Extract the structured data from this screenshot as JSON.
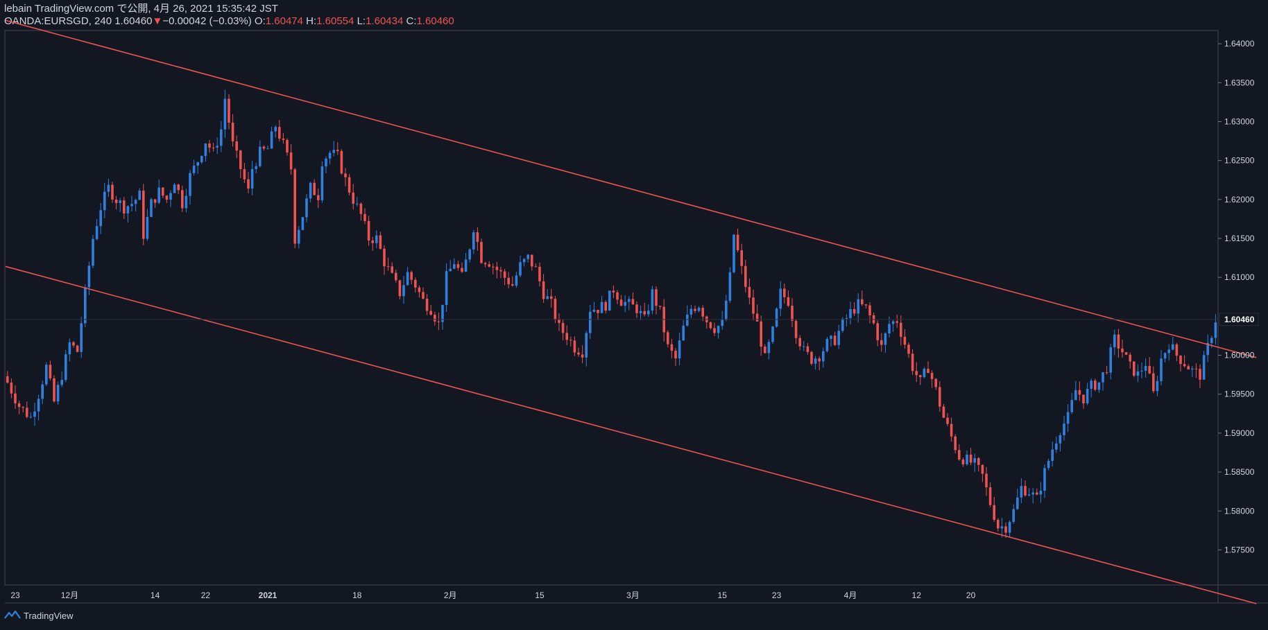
{
  "header": {
    "publish_line": "lebain TradingView.com で公開, 4月 26, 2021 15:35:42 JST",
    "symbol": "OANDA:EURSGD, 240",
    "last_price": "1.60460",
    "change_arrow": "▼",
    "change": "−0.00042 (−0.03%)",
    "o_label": "O:",
    "o_value": "1.60474",
    "h_label": "H:",
    "h_value": "1.60554",
    "l_label": "L:",
    "l_value": "1.60434",
    "c_label": "C:",
    "c_value": "1.60460"
  },
  "footer": {
    "brand": "TradingView",
    "logo_icon": "tradingview-logo-icon"
  },
  "colors": {
    "background": "#131722",
    "up": "#2f81e0",
    "down": "#ef5350",
    "trendline": "#ef5350",
    "axis_text": "#d1d4dc",
    "border": "#434651",
    "price_label_bg": "#131722"
  },
  "chart_data": {
    "type": "candlestick",
    "title": "",
    "xlabel": "",
    "ylabel": "",
    "ylim": [
      1.5705,
      1.6417
    ],
    "y_ticks": [
      "1.57500",
      "1.58000",
      "1.58500",
      "1.59000",
      "1.59500",
      "1.60000",
      "1.61000",
      "1.61500",
      "1.62000",
      "1.62500",
      "1.63000",
      "1.63500",
      "1.64000"
    ],
    "x_ticks": [
      "23",
      "12月",
      "14",
      "22",
      "2021",
      "18",
      "2月",
      "15",
      "3月",
      "15",
      "23",
      "4月",
      "12",
      "20"
    ],
    "current_price": "1.60460",
    "grid": false,
    "close_path": [
      [
        0,
        1.5965
      ],
      [
        3,
        1.5935
      ],
      [
        6,
        1.592
      ],
      [
        8,
        1.595
      ],
      [
        10,
        1.5985
      ],
      [
        12,
        1.594
      ],
      [
        14,
        1.5975
      ],
      [
        16,
        1.6015
      ],
      [
        18,
        1.6005
      ],
      [
        20,
        1.608
      ],
      [
        22,
        1.615
      ],
      [
        24,
        1.619
      ],
      [
        26,
        1.6215
      ],
      [
        28,
        1.62
      ],
      [
        30,
        1.619
      ],
      [
        32,
        1.6195
      ],
      [
        34,
        1.6205
      ],
      [
        35,
        1.6155
      ],
      [
        37,
        1.6195
      ],
      [
        39,
        1.621
      ],
      [
        41,
        1.62
      ],
      [
        43,
        1.6225
      ],
      [
        45,
        1.6195
      ],
      [
        47,
        1.623
      ],
      [
        49,
        1.625
      ],
      [
        51,
        1.6275
      ],
      [
        53,
        1.626
      ],
      [
        55,
        1.629
      ],
      [
        56,
        1.633
      ],
      [
        58,
        1.627
      ],
      [
        60,
        1.624
      ],
      [
        62,
        1.621
      ],
      [
        63,
        1.624
      ],
      [
        65,
        1.626
      ],
      [
        67,
        1.6265
      ],
      [
        69,
        1.6295
      ],
      [
        71,
        1.627
      ],
      [
        73,
        1.624
      ],
      [
        74,
        1.615
      ],
      [
        76,
        1.618
      ],
      [
        78,
        1.6215
      ],
      [
        80,
        1.6205
      ],
      [
        81,
        1.625
      ],
      [
        83,
        1.626
      ],
      [
        85,
        1.6255
      ],
      [
        87,
        1.6225
      ],
      [
        89,
        1.62
      ],
      [
        91,
        1.618
      ],
      [
        93,
        1.615
      ],
      [
        95,
        1.615
      ],
      [
        97,
        1.612
      ],
      [
        99,
        1.61
      ],
      [
        101,
        1.608
      ],
      [
        103,
        1.6105
      ],
      [
        105,
        1.609
      ],
      [
        107,
        1.607
      ],
      [
        109,
        1.606
      ],
      [
        111,
        1.604
      ],
      [
        113,
        1.61
      ],
      [
        115,
        1.612
      ],
      [
        117,
        1.61
      ],
      [
        119,
        1.614
      ],
      [
        120,
        1.6165
      ],
      [
        122,
        1.6125
      ],
      [
        124,
        1.612
      ],
      [
        126,
        1.611
      ],
      [
        128,
        1.61
      ],
      [
        130,
        1.609
      ],
      [
        132,
        1.6115
      ],
      [
        134,
        1.6125
      ],
      [
        136,
        1.611
      ],
      [
        138,
        1.608
      ],
      [
        140,
        1.6065
      ],
      [
        142,
        1.6035
      ],
      [
        144,
        1.6025
      ],
      [
        146,
        1.601
      ],
      [
        148,
        1.6005
      ],
      [
        150,
        1.606
      ],
      [
        152,
        1.606
      ],
      [
        154,
        1.6065
      ],
      [
        156,
        1.6085
      ],
      [
        158,
        1.607
      ],
      [
        160,
        1.6065
      ],
      [
        162,
        1.606
      ],
      [
        164,
        1.6045
      ],
      [
        166,
        1.608
      ],
      [
        168,
        1.6055
      ],
      [
        170,
        1.601
      ],
      [
        172,
        1.5995
      ],
      [
        174,
        1.6035
      ],
      [
        176,
        1.606
      ],
      [
        178,
        1.6065
      ],
      [
        180,
        1.6045
      ],
      [
        182,
        1.6035
      ],
      [
        184,
        1.604
      ],
      [
        186,
        1.61
      ],
      [
        187,
        1.6155
      ],
      [
        189,
        1.611
      ],
      [
        191,
        1.607
      ],
      [
        193,
        1.604
      ],
      [
        195,
        1.5995
      ],
      [
        197,
        1.603
      ],
      [
        199,
        1.608
      ],
      [
        201,
        1.607
      ],
      [
        203,
        1.603
      ],
      [
        205,
        1.6005
      ],
      [
        207,
        1.5995
      ],
      [
        209,
        1.6
      ],
      [
        211,
        1.6015
      ],
      [
        213,
        1.602
      ],
      [
        215,
        1.604
      ],
      [
        217,
        1.6055
      ],
      [
        219,
        1.6065
      ],
      [
        221,
        1.606
      ],
      [
        223,
        1.604
      ],
      [
        225,
        1.601
      ],
      [
        227,
        1.604
      ],
      [
        229,
        1.6045
      ],
      [
        231,
        1.6015
      ],
      [
        233,
        1.5985
      ],
      [
        235,
        1.5965
      ],
      [
        237,
        1.5985
      ],
      [
        239,
        1.5955
      ],
      [
        241,
        1.592
      ],
      [
        243,
        1.5895
      ],
      [
        245,
        1.587
      ],
      [
        247,
        1.5865
      ],
      [
        249,
        1.586
      ],
      [
        251,
        1.5845
      ],
      [
        253,
        1.581
      ],
      [
        255,
        1.578
      ],
      [
        257,
        1.578
      ],
      [
        259,
        1.58
      ],
      [
        261,
        1.583
      ],
      [
        263,
        1.5825
      ],
      [
        265,
        1.5815
      ],
      [
        267,
        1.585
      ],
      [
        269,
        1.588
      ],
      [
        271,
        1.5905
      ],
      [
        273,
        1.592
      ],
      [
        275,
        1.5955
      ],
      [
        277,
        1.5945
      ],
      [
        279,
        1.596
      ],
      [
        281,
        1.5965
      ],
      [
        283,
        1.5985
      ],
      [
        285,
        1.602
      ],
      [
        287,
        1.6005
      ],
      [
        289,
        1.5985
      ],
      [
        291,
        1.5975
      ],
      [
        293,
        1.599
      ],
      [
        295,
        1.595
      ],
      [
        297,
        1.5995
      ],
      [
        299,
        1.6015
      ],
      [
        301,
        1.6
      ],
      [
        303,
        1.599
      ],
      [
        305,
        1.598
      ],
      [
        307,
        1.5975
      ],
      [
        309,
        1.601
      ],
      [
        311,
        1.6046
      ]
    ],
    "trendlines": [
      {
        "name": "",
        "from": [
          0.0,
          1.643
        ],
        "to": [
          322.0,
          1.5997
        ]
      },
      {
        "name": "",
        "from": [
          0.0,
          1.6114
        ],
        "to": [
          322.0,
          1.5681
        ]
      }
    ]
  }
}
